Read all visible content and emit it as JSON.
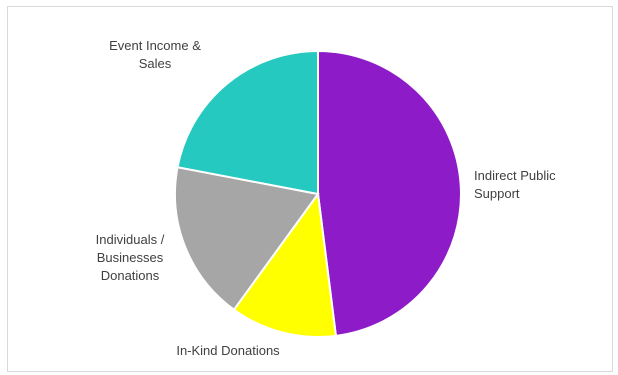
{
  "chart_data": {
    "type": "pie",
    "title": "",
    "slices": [
      {
        "label": [
          "Indirect Public",
          "Support"
        ],
        "value": 48,
        "color": "#8E1BC8"
      },
      {
        "label": [
          "In-Kind Donations"
        ],
        "value": 12,
        "color": "#FFFF00"
      },
      {
        "label": [
          "Individuals /",
          "Businesses",
          "Donations"
        ],
        "value": 18,
        "color": "#A6A6A6"
      },
      {
        "label": [
          "Event Income &",
          "Sales"
        ],
        "value": 22,
        "color": "#26C9C0"
      }
    ],
    "legend": "none",
    "start_angle_deg": 0,
    "direction": "clockwise"
  }
}
